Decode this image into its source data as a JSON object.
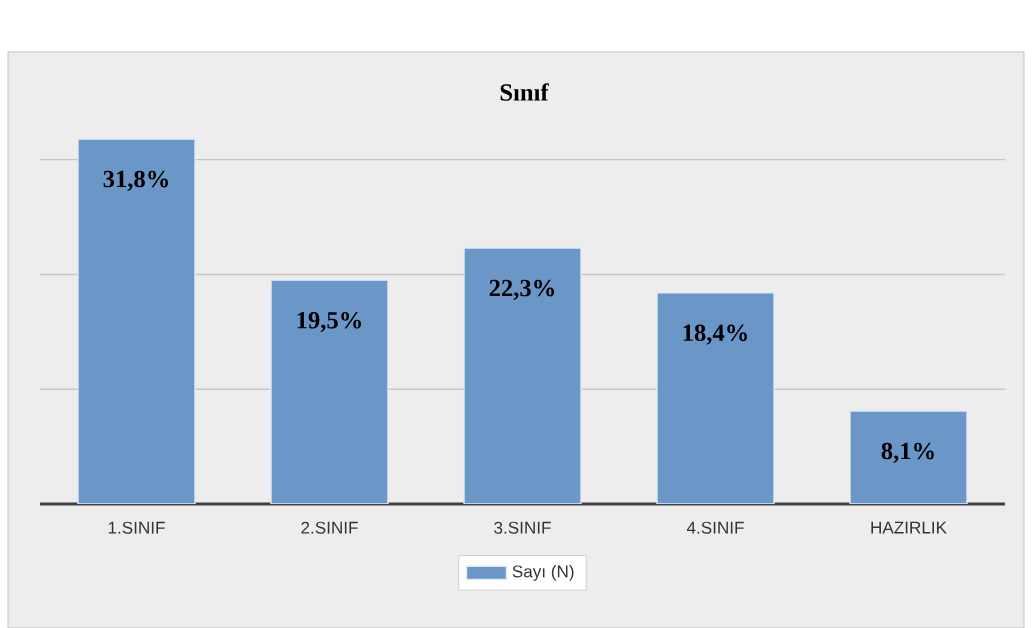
{
  "chart_data": {
    "type": "bar",
    "title": "Sınıf",
    "categories": [
      "1.SINIF",
      "2.SINIF",
      "3.SINIF",
      "4.SINIF",
      "HAZIRLIK"
    ],
    "series": [
      {
        "name": "Sayı (N)",
        "color": "#6b96c8",
        "values": [
          31.8,
          19.5,
          22.3,
          18.4,
          8.1
        ],
        "value_labels": [
          "31,8%",
          "19,5%",
          "22,3%",
          "18,4%",
          "8,1%"
        ]
      }
    ],
    "tick_labels": "x",
    "grid": "y",
    "legend": "bottom"
  }
}
